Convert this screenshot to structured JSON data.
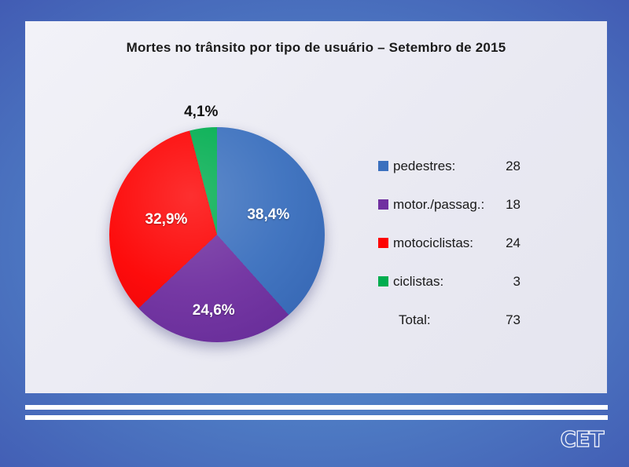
{
  "chart_data": {
    "type": "pie",
    "title": "Mortes no trânsito por tipo de usuário – Setembro de 2015",
    "direction": "clockwise",
    "start_angle_deg": 0,
    "legend_position": "right",
    "slices": [
      {
        "legend_label": "pedestres:",
        "value": 28,
        "pct": 38.4,
        "pct_label": "38,4%",
        "color": "#3b70be",
        "label_color": "#ffffff",
        "label_r": 0.51
      },
      {
        "legend_label": "motor./passag.:",
        "value": 18,
        "pct": 24.6,
        "pct_label": "24,6%",
        "color": "#7030a0",
        "label_color": "#ffffff",
        "label_r": 0.71
      },
      {
        "legend_label": "motociclistas:",
        "value": 24,
        "pct": 32.9,
        "pct_label": "32,9%",
        "color": "#fd0202",
        "label_color": "#ffffff",
        "label_r": 0.49
      },
      {
        "legend_label": "ciclistas:",
        "value": 3,
        "pct": 4.1,
        "pct_label": "4,1%",
        "color": "#00ad4f",
        "label_color": "#111111",
        "label_r": 1.15
      }
    ],
    "total_label": "Total:",
    "total_value": 73
  },
  "footer": {
    "logo_text": "CET"
  }
}
